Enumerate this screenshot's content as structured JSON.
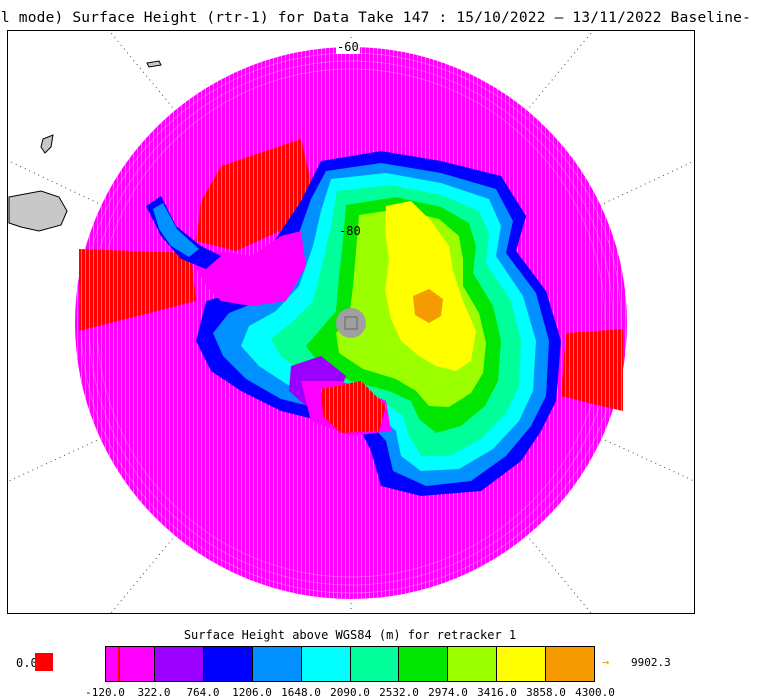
{
  "title": "ll mode) Surface Height (rtr-1) for Data Take 147 : 15/10/2022 – 13/11/2022 Baseline-",
  "map": {
    "latitude_labels": [
      "-60",
      "-80"
    ],
    "region": "Antarctica (south polar stereographic)"
  },
  "colorbar": {
    "title": "Surface Height above WGS84 (m) for retracker 1",
    "ticks": [
      "-120.0",
      "322.0",
      "764.0",
      "1206.0",
      "1648.0",
      "2090.0",
      "2532.0",
      "2974.0",
      "3416.0",
      "3858.0",
      "4300.0"
    ],
    "colors": [
      "#ff00ff",
      "#9b00ff",
      "#0000ff",
      "#0090ff",
      "#00ffff",
      "#00ff9b",
      "#00e600",
      "#9bff00",
      "#ffff00",
      "#f59a00"
    ],
    "nodata_label": "0.0",
    "nodata_color": "#ff0000",
    "overflow_value": "9902.3",
    "overflow_color": "#f39a00"
  }
}
